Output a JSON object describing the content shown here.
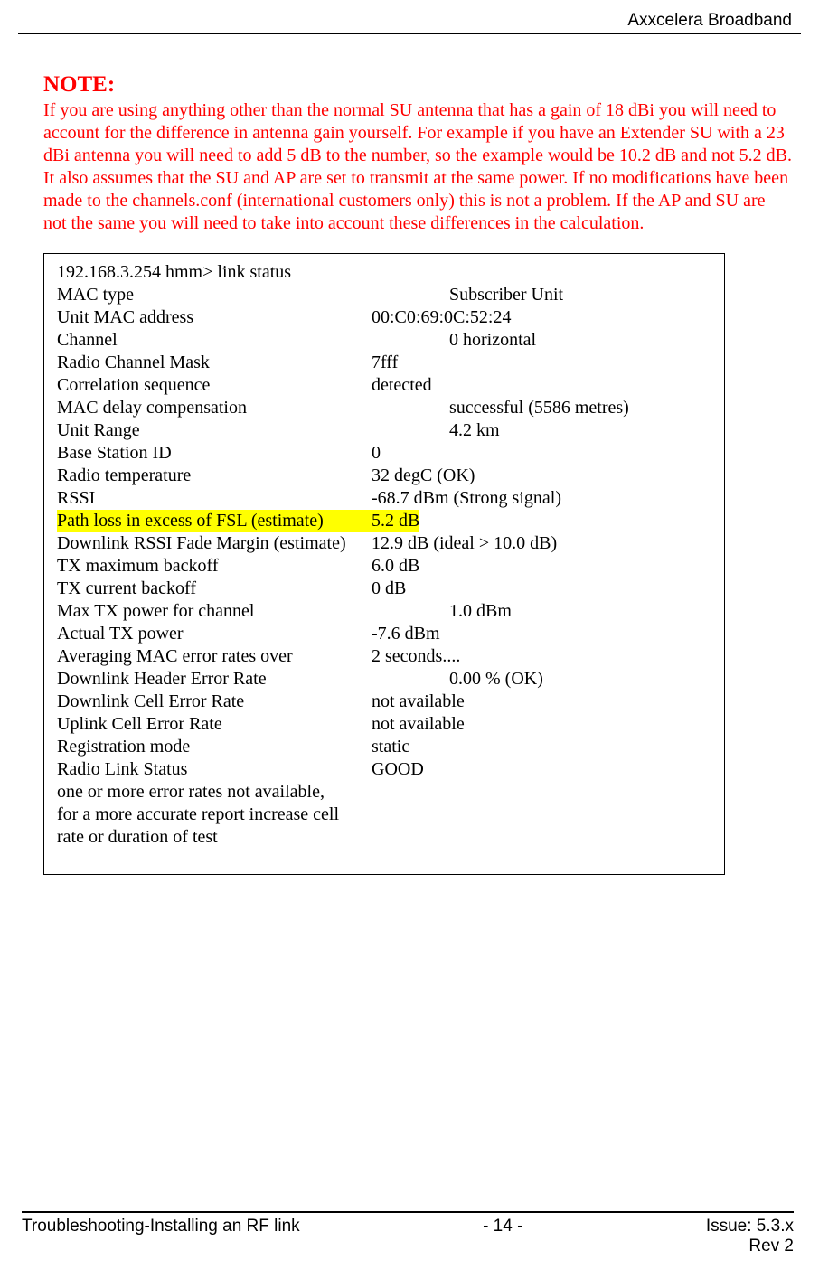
{
  "header": {
    "title": "Axxcelera Broadband"
  },
  "note": {
    "title": "NOTE:",
    "body": "If you are using anything other than the normal SU antenna that has a gain of 18 dBi you will need to account for the difference in antenna gain yourself. For example if you have an Extender SU with a 23 dBi antenna you will need to add 5 dB to the number, so the example would be 10.2 dB and not 5.2 dB. It also assumes that the SU and AP are set to transmit at the same power. If no modifications have been made to the channels.conf (international customers only) this is not a problem. If the AP and SU are not the same you will need to take into account these differences in the calculation."
  },
  "terminal": {
    "prompt": "192.168.3.254 hmm> link status",
    "rows": [
      {
        "label": "MAC type",
        "value": "Subscriber Unit",
        "indent": "2"
      },
      {
        "label": "Unit MAC address",
        "value": "00:C0:69:0C:52:24",
        "indent": "1"
      },
      {
        "label": "Channel",
        "value": "0 horizontal",
        "indent": "2"
      },
      {
        "label": "Radio Channel Mask",
        "value": "7fff",
        "indent": "1"
      },
      {
        "label": "Correlation sequence",
        "value": "detected",
        "indent": "1"
      },
      {
        "label": "MAC delay compensation",
        "value": "successful (5586 metres)",
        "indent": "2"
      },
      {
        "label": "Unit Range",
        "value": "4.2 km",
        "indent": "2"
      },
      {
        "label": "Base Station ID",
        "value": "0",
        "indent": "1"
      },
      {
        "label": "Radio temperature",
        "value": "32 degC (OK)",
        "indent": "1"
      },
      {
        "label": "RSSI",
        "value": "-68.7 dBm (Strong signal)",
        "indent": "1"
      },
      {
        "label": "Path loss in excess of FSL (estimate)",
        "value": "5.2 dB",
        "indent": "1",
        "highlight": true
      },
      {
        "label": "Downlink RSSI Fade Margin (estimate)",
        "value": "12.9 dB (ideal > 10.0 dB)",
        "indent": "1"
      },
      {
        "label": "TX maximum backoff",
        "value": "6.0 dB",
        "indent": "1"
      },
      {
        "label": "TX current backoff",
        "value": "0 dB",
        "indent": "1"
      },
      {
        "label": "Max TX power for channel",
        "value": "1.0 dBm",
        "indent": "2"
      },
      {
        "label": "Actual TX power",
        "value": "-7.6 dBm",
        "indent": "1"
      },
      {
        "label": "Averaging MAC error rates over",
        "value": "2 seconds....",
        "indent": "1"
      },
      {
        "label": "Downlink Header Error Rate",
        "value": "0.00 % (OK)",
        "indent": "2"
      },
      {
        "label": "Downlink Cell Error Rate",
        "value": "not available",
        "indent": "1"
      },
      {
        "label": "Uplink Cell Error Rate",
        "value": "not available",
        "indent": "1"
      },
      {
        "label": "Registration mode",
        "value": "static",
        "indent": "1"
      },
      {
        "label": "Radio Link Status",
        "value": "GOOD",
        "indent": "1"
      }
    ],
    "trailer": [
      "one or more error rates not available,",
      "for a more accurate report increase cell",
      "rate or duration of test"
    ]
  },
  "footer": {
    "left": "Troubleshooting-Installing an RF link",
    "center": "- 14 -",
    "issue": "Issue: 5.3.x",
    "rev": "Rev 2"
  },
  "colors": {
    "note_color": "#ff0000",
    "highlight_bg": "#ffff00",
    "text_color": "#000000",
    "background": "#ffffff"
  },
  "typography": {
    "body_font": "Times New Roman",
    "header_footer_font": "Arial",
    "note_title_size_pt": 18,
    "body_size_pt": 15
  }
}
